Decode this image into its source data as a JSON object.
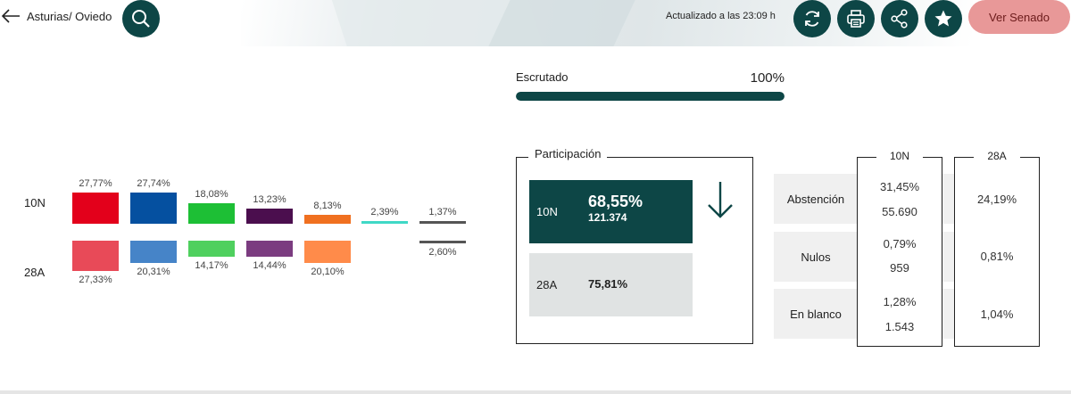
{
  "header": {
    "back_label": "Asturias/ Oviedo",
    "updated": "Actualizado a las 23:09 h",
    "senado_button": "Ver Senado",
    "icons": [
      "arrow-left-icon",
      "search-icon",
      "refresh-icon",
      "print-icon",
      "share-icon",
      "star-icon"
    ]
  },
  "progress": {
    "label": "Escrutado",
    "value_text": "100%",
    "fraction": 1.0
  },
  "elections": {
    "current": "10N",
    "previous": "28A"
  },
  "parties": [
    {
      "color_10n": "#e3001b",
      "color_28a": "#e84a58",
      "pct_10n": "27,77%",
      "pct_28a": "27,33%"
    },
    {
      "color_10n": "#0550a0",
      "color_28a": "#4684c8",
      "pct_10n": "27,74%",
      "pct_28a": "20,31%"
    },
    {
      "color_10n": "#1dbf35",
      "color_28a": "#4fd05e",
      "pct_10n": "18,08%",
      "pct_28a": "14,17%"
    },
    {
      "color_10n": "#4b0e4e",
      "color_28a": "#7b3c80",
      "pct_10n": "13,23%",
      "pct_28a": "14,44%"
    },
    {
      "color_10n": "#f07020",
      "color_28a": "#ff8b4a",
      "pct_10n": "8,13%",
      "pct_28a": "20,10%"
    },
    {
      "color_10n": "#3fd8c6",
      "color_28a": null,
      "pct_10n": "2,39%",
      "pct_28a": null
    },
    {
      "color_10n": "#555555",
      "color_28a": "#555555",
      "pct_10n": "1,37%",
      "pct_28a": "2,60%"
    }
  ],
  "participation": {
    "title": "Participación",
    "current": {
      "label": "10N",
      "pct": "68,55%",
      "votes": "121.374"
    },
    "previous": {
      "label": "28A",
      "pct": "75,81%"
    },
    "trend_icon": "arrow-down-icon"
  },
  "table": {
    "col_current": "10N",
    "col_previous": "28A",
    "rows": [
      {
        "name": "Abstención",
        "pct_10n": "31,45%",
        "count_10n": "55.690",
        "pct_28a": "24,19%"
      },
      {
        "name": "Nulos",
        "pct_10n": "0,79%",
        "count_10n": "959",
        "pct_28a": "0,81%"
      },
      {
        "name": "En blanco",
        "pct_10n": "1,28%",
        "count_10n": "1.543",
        "pct_28a": "1,04%"
      }
    ]
  }
}
